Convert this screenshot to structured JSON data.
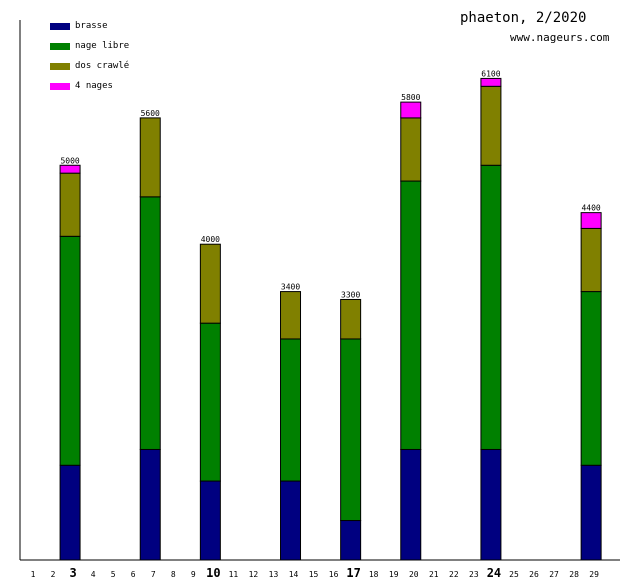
{
  "chart_data": {
    "type": "bar",
    "stacked": true,
    "title": "phaeton, 2/2020",
    "subtitle": "www.nageurs.com",
    "xlabel": "",
    "ylabel": "",
    "x_ticks": [
      1,
      2,
      3,
      4,
      5,
      6,
      7,
      8,
      9,
      10,
      11,
      12,
      13,
      14,
      15,
      16,
      17,
      18,
      19,
      20,
      21,
      22,
      23,
      24,
      25,
      26,
      27,
      28,
      29
    ],
    "bold_ticks": [
      3,
      10,
      17,
      24
    ],
    "categories": [
      3,
      7,
      10,
      14,
      17,
      20,
      24,
      29
    ],
    "series": [
      {
        "name": "brasse",
        "color": "#000080",
        "values": [
          1200,
          1400,
          1000,
          1000,
          500,
          1400,
          1400,
          1200
        ]
      },
      {
        "name": "nage libre",
        "color": "#008000",
        "values": [
          2900,
          3200,
          2000,
          1800,
          2300,
          3400,
          3600,
          2200
        ]
      },
      {
        "name": "dos crawlé",
        "color": "#808000",
        "values": [
          800,
          1000,
          1000,
          600,
          500,
          800,
          1000,
          800
        ]
      },
      {
        "name": "4 nages",
        "color": "#ff00ff",
        "values": [
          100,
          0,
          0,
          0,
          0,
          200,
          100,
          200
        ]
      }
    ],
    "totals": [
      5000,
      5600,
      4000,
      3400,
      3300,
      5800,
      6100,
      4400
    ],
    "ylim": [
      0,
      6840
    ],
    "legend_position": "top-left",
    "grid": false
  }
}
